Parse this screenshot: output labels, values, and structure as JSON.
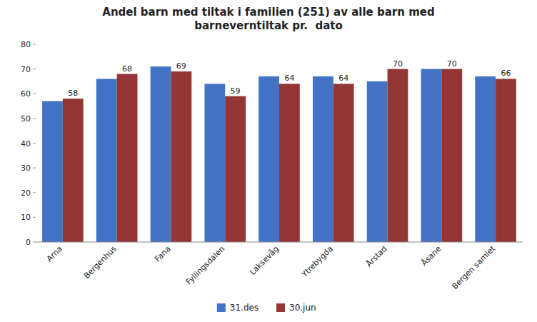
{
  "chart_data": {
    "type": "bar",
    "title": "Andel barn med tiltak i familien (251) av alle barn med\nbarneverntiltak pr.  dato",
    "categories": [
      "Arna",
      "Bergenhus",
      "Fana",
      "Fyllingsdalen",
      "Laksevåg",
      "Ytrebygda",
      "Årstad",
      "Åsane",
      "Bergen samlet"
    ],
    "series": [
      {
        "name": "31.des",
        "color": "#4472C4",
        "values": [
          57,
          66,
          71,
          64,
          67,
          67,
          65,
          70,
          67
        ]
      },
      {
        "name": "30.jun",
        "color": "#943634",
        "values": [
          58,
          68,
          69,
          59,
          64,
          64,
          70,
          70,
          66
        ],
        "data_labels": true
      }
    ],
    "ylim": [
      0,
      80
    ],
    "yticks": [
      0,
      10,
      20,
      30,
      40,
      50,
      60,
      70,
      80
    ],
    "grid": false,
    "legend": "bottom"
  }
}
